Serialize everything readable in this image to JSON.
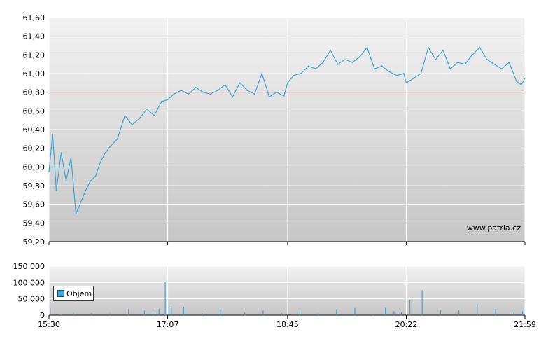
{
  "chart_data": [
    {
      "type": "line",
      "title": "",
      "watermark": "www.patria.cz",
      "x_ticks": [
        "15:30",
        "17:07",
        "18:45",
        "20:22",
        "21:59"
      ],
      "y_ticks": [
        "59,20",
        "59,40",
        "59,60",
        "59,80",
        "60,00",
        "60,20",
        "60,40",
        "60,60",
        "60,80",
        "61,00",
        "61,20",
        "61,40",
        "61,60"
      ],
      "ylim": [
        59.2,
        61.6
      ],
      "grid": true,
      "reference_line": {
        "value": 60.8,
        "color": "#e03030"
      },
      "series": [
        {
          "color": "#3ea6d6",
          "x": [
            "15:30",
            "15:33",
            "15:36",
            "15:40",
            "15:44",
            "15:48",
            "15:52",
            "15:56",
            "16:00",
            "16:04",
            "16:08",
            "16:12",
            "16:16",
            "16:20",
            "16:26",
            "16:32",
            "16:38",
            "16:44",
            "16:50",
            "16:56",
            "17:02",
            "17:07",
            "17:12",
            "17:18",
            "17:24",
            "17:30",
            "17:36",
            "17:42",
            "17:48",
            "17:54",
            "18:00",
            "18:06",
            "18:12",
            "18:18",
            "18:24",
            "18:30",
            "18:36",
            "18:42",
            "18:45",
            "18:50",
            "18:56",
            "19:02",
            "19:08",
            "19:14",
            "19:20",
            "19:26",
            "19:32",
            "19:38",
            "19:44",
            "19:50",
            "19:56",
            "20:02",
            "20:08",
            "20:14",
            "20:20",
            "20:22",
            "20:28",
            "20:34",
            "20:40",
            "20:46",
            "20:52",
            "20:58",
            "21:04",
            "21:10",
            "21:16",
            "21:22",
            "21:28",
            "21:34",
            "21:40",
            "21:46",
            "21:52",
            "21:56",
            "21:59"
          ],
          "y": [
            59.95,
            60.35,
            59.75,
            60.15,
            59.85,
            60.1,
            59.5,
            59.62,
            59.75,
            59.85,
            59.9,
            60.05,
            60.15,
            60.22,
            60.3,
            60.55,
            60.45,
            60.52,
            60.62,
            60.55,
            60.7,
            60.72,
            60.78,
            60.82,
            60.78,
            60.85,
            60.8,
            60.78,
            60.82,
            60.88,
            60.75,
            60.9,
            60.82,
            60.78,
            61.0,
            60.75,
            60.8,
            60.76,
            60.9,
            60.98,
            61.0,
            61.08,
            61.05,
            61.12,
            61.25,
            61.1,
            61.15,
            61.12,
            61.18,
            61.28,
            61.05,
            61.08,
            61.02,
            60.98,
            61.0,
            60.9,
            60.95,
            61.0,
            61.28,
            61.15,
            61.25,
            61.05,
            61.12,
            61.1,
            61.2,
            61.28,
            61.15,
            61.1,
            61.05,
            61.12,
            60.92,
            60.88,
            60.95
          ]
        }
      ]
    },
    {
      "type": "bar",
      "title": "",
      "x_ticks": [
        "15:30",
        "17:07",
        "18:45",
        "20:22",
        "21:59"
      ],
      "y_ticks": [
        "0",
        "50 000",
        "100 000",
        "150 000"
      ],
      "ylim": [
        0,
        150000
      ],
      "grid": true,
      "legend": {
        "position": "left",
        "entries": [
          {
            "label": "Objem",
            "color": "#3ea6d6"
          }
        ]
      },
      "series": [
        {
          "name": "Objem",
          "color": "#3ea6d6",
          "x": [
            "15:31",
            "15:40",
            "15:50",
            "16:05",
            "16:20",
            "16:35",
            "16:48",
            "16:55",
            "17:00",
            "17:05",
            "17:10",
            "17:20",
            "17:35",
            "17:50",
            "18:10",
            "18:25",
            "18:40",
            "18:55",
            "19:10",
            "19:25",
            "19:40",
            "19:55",
            "20:05",
            "20:12",
            "20:18",
            "20:25",
            "20:35",
            "20:50",
            "21:05",
            "21:20",
            "21:35",
            "21:50",
            "21:57"
          ],
          "values": [
            22000,
            4000,
            8000,
            6000,
            5000,
            20000,
            14000,
            8000,
            20000,
            101000,
            28000,
            25000,
            6000,
            17000,
            8000,
            14000,
            7000,
            12000,
            5000,
            18000,
            22000,
            4000,
            23000,
            12000,
            8000,
            47000,
            76000,
            16000,
            15000,
            34000,
            19000,
            8000,
            12000
          ]
        }
      ]
    }
  ]
}
